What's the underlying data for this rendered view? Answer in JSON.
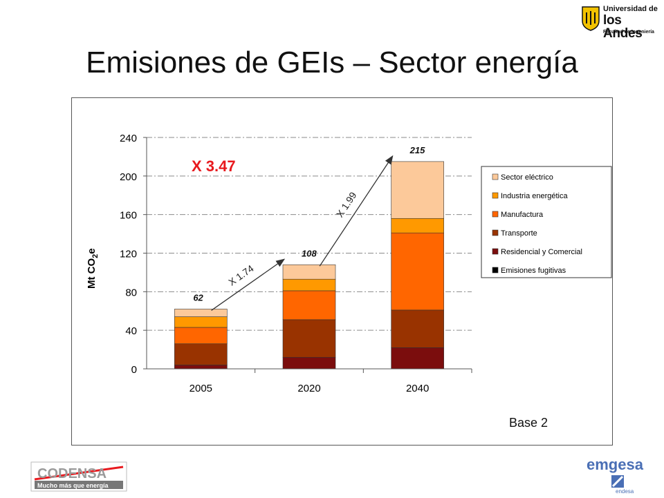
{
  "slide": {
    "title": "Emisiones de GEIs – Sector energía",
    "note": "Base 2",
    "big_multiplier": "X 3.47"
  },
  "logos": {
    "top_right": {
      "line1": "Universidad de",
      "line2": "los Andes",
      "line3": "Facultad de Ingeniería"
    },
    "bottom_left": {
      "name": "CODENSA",
      "tagline": "Mucho más que energía"
    },
    "bottom_right": {
      "name": "emgesa",
      "sub": "endesa"
    }
  },
  "chart_data": {
    "type": "bar",
    "stacked": true,
    "categories": [
      "2005",
      "2020",
      "2040"
    ],
    "ylabel": "Mt CO2e",
    "ylim": [
      0,
      240
    ],
    "yticks": [
      0,
      40,
      80,
      120,
      160,
      200,
      240
    ],
    "grid": "horizontal dash-dot",
    "legend_position": "right",
    "series": [
      {
        "name": "Emisiones fugitivas",
        "color": "#000000",
        "values": [
          0,
          0,
          0
        ]
      },
      {
        "name": "Residencial y Comercial",
        "color": "#7b0d0d",
        "values": [
          4,
          12,
          22
        ]
      },
      {
        "name": "Transporte",
        "color": "#993300",
        "values": [
          22,
          39,
          39
        ]
      },
      {
        "name": "Manufactura",
        "color": "#ff6600",
        "values": [
          17,
          30,
          80
        ]
      },
      {
        "name": "Industria energética",
        "color": "#ff9900",
        "values": [
          11,
          12,
          15
        ]
      },
      {
        "name": "Sector eléctrico",
        "color": "#fcc99a",
        "values": [
          8,
          15,
          59
        ]
      }
    ],
    "totals": [
      "62",
      "108",
      "215"
    ],
    "growth_annotations": [
      {
        "from": "2005",
        "to": "2020",
        "label": "X 1.74"
      },
      {
        "from": "2020",
        "to": "2040",
        "label": "X 1.99"
      }
    ]
  }
}
